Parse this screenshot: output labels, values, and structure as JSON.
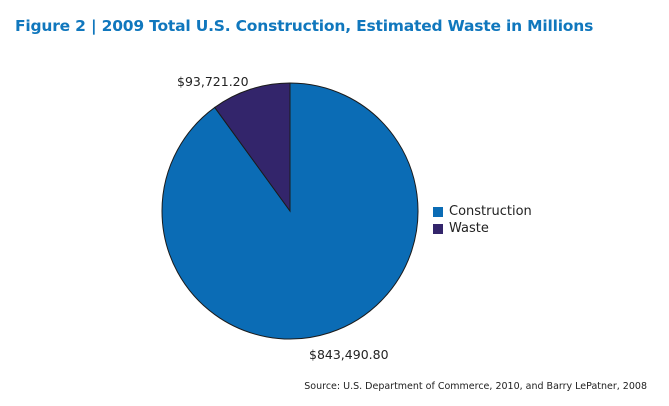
{
  "colors": {
    "title": "#1077bd",
    "construction": "#0b6cb5",
    "waste": "#33256b",
    "slice_border": "#1b1b1b"
  },
  "chart_data": {
    "type": "pie",
    "title": "Figure 2 | 2009 Total U.S. Construction, Estimated Waste in Millions",
    "slices": [
      {
        "name": "Construction",
        "value": 843490.8,
        "label": "$843,490.80",
        "color": "#0b6cb5"
      },
      {
        "name": "Waste",
        "value": 93721.2,
        "label": "$93,721.20",
        "color": "#33256b"
      }
    ],
    "legend": {
      "placement": "right",
      "entries": [
        "Construction",
        "Waste"
      ]
    },
    "source": "Source: U.S. Department of Commerce, 2010, and Barry LePatner, 2008"
  }
}
